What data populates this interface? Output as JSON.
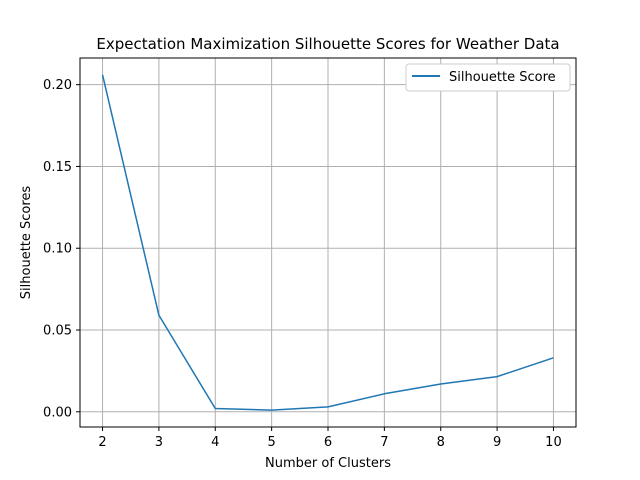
{
  "chart_data": {
    "type": "line",
    "title": "Expectation Maximization Silhouette Scores for Weather Data",
    "xlabel": "Number of Clusters",
    "ylabel": "Silhouette Scores",
    "x": [
      2,
      3,
      4,
      5,
      6,
      7,
      8,
      9,
      10
    ],
    "series": [
      {
        "name": "Silhouette Score",
        "values": [
          0.206,
          0.059,
          0.002,
          0.001,
          0.003,
          0.011,
          0.017,
          0.0215,
          0.033
        ],
        "color": "#1f77b4"
      }
    ],
    "xlim": [
      1.6,
      10.4
    ],
    "ylim": [
      -0.0093,
      0.2163
    ],
    "xticks": [
      2,
      3,
      4,
      5,
      6,
      7,
      8,
      9,
      10
    ],
    "xtick_labels": [
      "2",
      "3",
      "4",
      "5",
      "6",
      "7",
      "8",
      "9",
      "10"
    ],
    "yticks": [
      0.0,
      0.05,
      0.1,
      0.15,
      0.2
    ],
    "ytick_labels": [
      "0.00",
      "0.05",
      "0.10",
      "0.15",
      "0.20"
    ],
    "grid": true,
    "legend_position": "top-right"
  }
}
